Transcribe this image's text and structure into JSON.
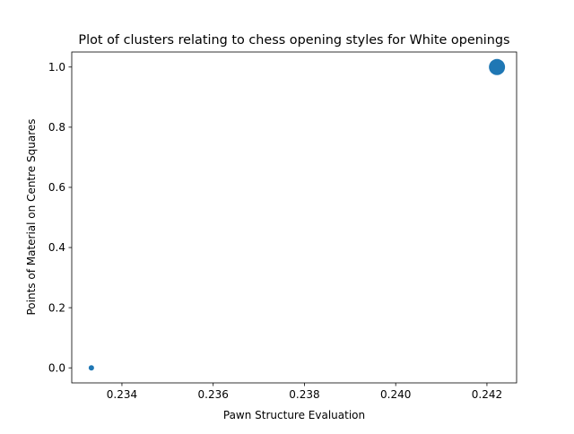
{
  "chart_data": {
    "type": "scatter",
    "title": "Plot of clusters relating to chess opening styles for White openings",
    "xlabel": "Pawn Structure Evaluation",
    "ylabel": "Points of Material on Centre Squares",
    "xlim": [
      0.2329,
      0.24265
    ],
    "ylim": [
      -0.05,
      1.05
    ],
    "xticks": [
      0.234,
      0.236,
      0.238,
      0.24,
      0.242
    ],
    "xtick_labels": [
      "0.234",
      "0.236",
      "0.238",
      "0.240",
      "0.242"
    ],
    "yticks": [
      0.0,
      0.2,
      0.4,
      0.6,
      0.8,
      1.0
    ],
    "ytick_labels": [
      "0.0",
      "0.2",
      "0.4",
      "0.6",
      "0.8",
      "1.0"
    ],
    "grid": false,
    "legend": "none",
    "color": "#1f77b4",
    "points": [
      {
        "x": 0.23333,
        "y": 0.0,
        "relative_size": 1
      },
      {
        "x": 0.24222,
        "y": 1.0,
        "relative_size": 9
      }
    ]
  }
}
